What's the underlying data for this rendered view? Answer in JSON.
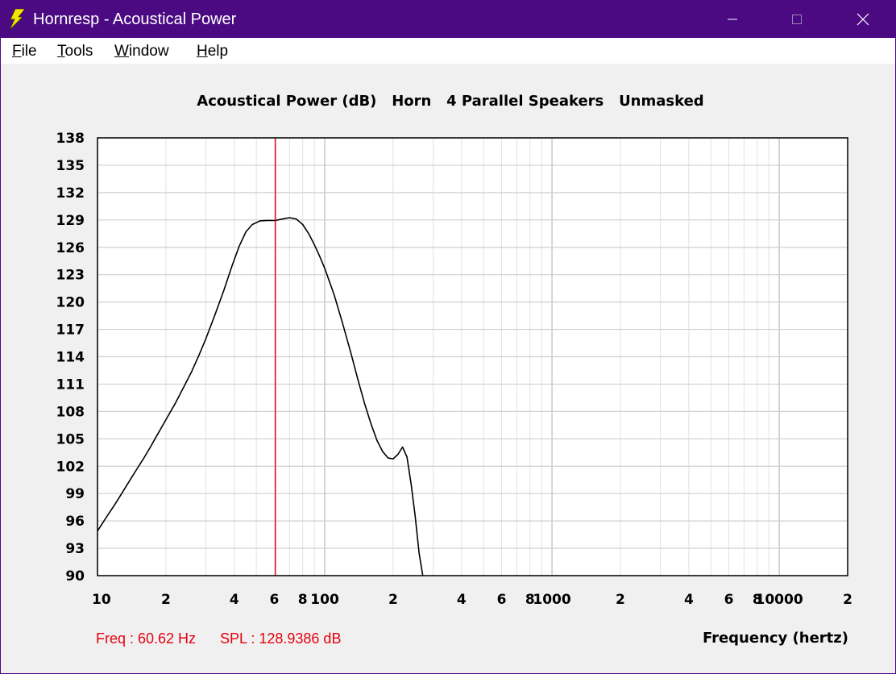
{
  "window": {
    "title": "Hornresp - Acoustical Power",
    "icon": "lightning-bolt-icon",
    "title_bar_color": "#4b0a82",
    "controls": [
      "minimize-icon",
      "maximize-icon",
      "close-icon"
    ]
  },
  "menu": {
    "items": [
      {
        "accel": "F",
        "rest": "ile"
      },
      {
        "accel": "T",
        "rest": "ools"
      },
      {
        "accel": "W",
        "rest": "indow"
      },
      {
        "accel": "H",
        "rest": "elp"
      }
    ]
  },
  "readout": {
    "freq": "Freq : 60.62 Hz",
    "spl": "SPL : 128.9386 dB",
    "color": "#e3000f"
  },
  "chart_data": {
    "type": "line",
    "title": "Acoustical Power (dB)   Horn   4 Parallel Speakers   Unmasked",
    "xlabel": "Frequency (hertz)",
    "ylabel": "",
    "x_scale": "log",
    "xlim": [
      10,
      20000
    ],
    "ylim": [
      90,
      138
    ],
    "y_ticks": [
      138,
      135,
      132,
      129,
      126,
      123,
      120,
      117,
      114,
      111,
      108,
      105,
      102,
      99,
      96,
      93,
      90
    ],
    "x_tick_labels": [
      {
        "v": 10,
        "t": "10"
      },
      {
        "v": 20,
        "t": "2"
      },
      {
        "v": 40,
        "t": "4"
      },
      {
        "v": 60,
        "t": "6"
      },
      {
        "v": 80,
        "t": "8"
      },
      {
        "v": 100,
        "t": "100"
      },
      {
        "v": 200,
        "t": "2"
      },
      {
        "v": 400,
        "t": "4"
      },
      {
        "v": 600,
        "t": "6"
      },
      {
        "v": 800,
        "t": "8"
      },
      {
        "v": 1000,
        "t": "1000"
      },
      {
        "v": 2000,
        "t": "2"
      },
      {
        "v": 4000,
        "t": "4"
      },
      {
        "v": 6000,
        "t": "6"
      },
      {
        "v": 8000,
        "t": "8"
      },
      {
        "v": 10000,
        "t": "10000"
      },
      {
        "v": 20000,
        "t": "2"
      }
    ],
    "grid": true,
    "cursor_x": 60.62,
    "cursor_color": "#e3000f",
    "series_color": "#000000",
    "series": [
      {
        "x": [
          10,
          11,
          12,
          13,
          14,
          15,
          16,
          17,
          18,
          20,
          22,
          24,
          26,
          28,
          30,
          33,
          36,
          39,
          42,
          45,
          48,
          52,
          56,
          60.62,
          65,
          70,
          75,
          80,
          85,
          90,
          95,
          100,
          110,
          120,
          130,
          140,
          150,
          160,
          170,
          180,
          190,
          200,
          210,
          220,
          230,
          240,
          250,
          260,
          270
        ],
        "y": [
          94.9,
          96.5,
          97.9,
          99.3,
          100.6,
          101.8,
          102.9,
          104.0,
          105.1,
          107.1,
          108.9,
          110.7,
          112.4,
          114.2,
          116.0,
          118.7,
          121.3,
          123.9,
          126.1,
          127.7,
          128.5,
          128.9,
          128.95,
          128.94,
          129.1,
          129.25,
          129.1,
          128.5,
          127.5,
          126.3,
          125.0,
          123.7,
          120.8,
          117.6,
          114.5,
          111.5,
          108.8,
          106.6,
          104.8,
          103.6,
          102.9,
          102.8,
          103.3,
          104.1,
          103.0,
          100.0,
          96.5,
          92.5,
          90.0
        ]
      }
    ]
  }
}
